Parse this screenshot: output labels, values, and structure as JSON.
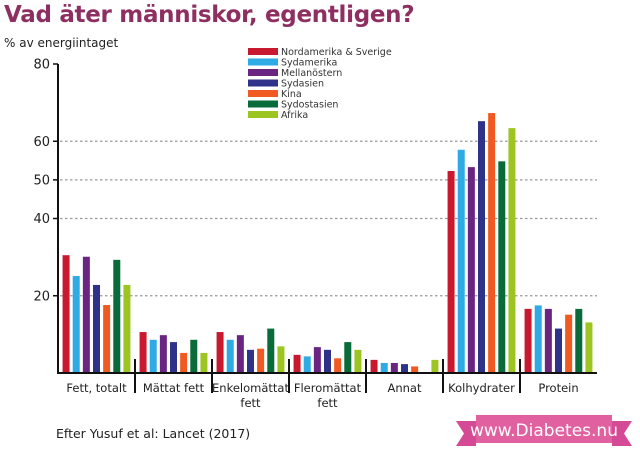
{
  "title": "Vad äter människor, egentligen?",
  "source": "Efter Yusuf et al: Lancet (2017)",
  "logo_text": "www.Diabetes.nu",
  "colors": {
    "title": "#8e2f62",
    "logo": "#e060a0"
  },
  "chart_data": {
    "type": "bar",
    "ylabel": "% av energiintaget",
    "ylim": [
      0,
      80
    ],
    "yticks": [
      20,
      40,
      50,
      60,
      80
    ],
    "grid": "horizontal dotted at 20, 40, 50, 60",
    "legend_position": "top-center",
    "categories": [
      "Fett, totalt",
      "Mättat fett",
      "Enkelomättat fett",
      "Fleromättat fett",
      "Annat",
      "Kolhydrater",
      "Protein"
    ],
    "category_lines": [
      [
        "Fett, totalt"
      ],
      [
        "Mättat fett"
      ],
      [
        "Enkelomättat",
        "fett"
      ],
      [
        "Fleromättat",
        "fett"
      ],
      [
        "Annat"
      ],
      [
        "Kolhydrater"
      ],
      [
        "Protein"
      ]
    ],
    "series": [
      {
        "name": "Nordamerika & Sverige",
        "color": "#c8192e",
        "values": [
          30.5,
          10.6,
          10.6,
          4.7,
          3.4,
          52.3,
          16.6
        ]
      },
      {
        "name": "Sydamerika",
        "color": "#2eaae4",
        "values": [
          25.1,
          8.6,
          8.6,
          4.3,
          2.6,
          57.8,
          17.5
        ]
      },
      {
        "name": "Mellanöstern",
        "color": "#6a2583",
        "values": [
          30.1,
          9.8,
          9.8,
          6.7,
          2.6,
          53.3,
          16.6
        ]
      },
      {
        "name": "Sydasien",
        "color": "#2e3288",
        "values": [
          22.8,
          8.0,
          6.0,
          6.0,
          2.3,
          65.2,
          11.5
        ]
      },
      {
        "name": "Kina",
        "color": "#f05a22",
        "values": [
          17.6,
          5.2,
          6.3,
          3.8,
          1.7,
          67.3,
          15.1
        ]
      },
      {
        "name": "Sydostasien",
        "color": "#0a6b3a",
        "values": [
          29.3,
          8.6,
          11.5,
          8.0,
          0,
          54.8,
          16.6
        ]
      },
      {
        "name": "Afrika",
        "color": "#9cc522",
        "values": [
          22.8,
          5.2,
          6.9,
          6.0,
          3.4,
          63.4,
          13.1
        ]
      }
    ]
  }
}
